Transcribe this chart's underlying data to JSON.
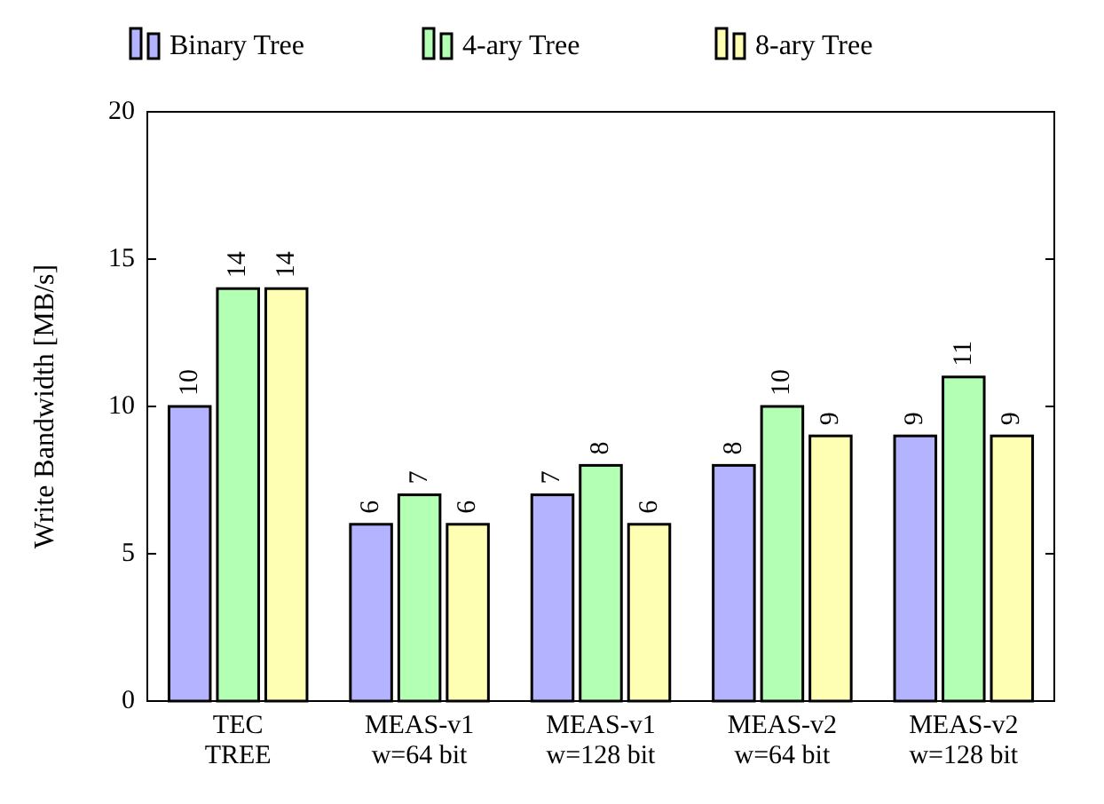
{
  "chart_data": {
    "type": "bar",
    "ylabel": "Write Bandwidth [MB/s]",
    "categories": [
      "TEC TREE",
      "MEAS-v1 w=64 bit",
      "MEAS-v1 w=128 bit",
      "MEAS-v2 w=64 bit",
      "MEAS-v2 w=128 bit"
    ],
    "series": [
      {
        "name": "Binary Tree",
        "color": "#b3b3ff",
        "values": [
          10,
          6,
          7,
          8,
          9
        ]
      },
      {
        "name": "4-ary Tree",
        "color": "#b3ffb3",
        "values": [
          14,
          7,
          8,
          10,
          11
        ]
      },
      {
        "name": "8-ary Tree",
        "color": "#ffffb3",
        "values": [
          14,
          6,
          6,
          9,
          9
        ]
      }
    ],
    "ylim": [
      0,
      20
    ],
    "yticks": [
      0,
      5,
      10,
      15,
      20
    ],
    "data_labels": true,
    "legend": "top",
    "grid": false
  }
}
